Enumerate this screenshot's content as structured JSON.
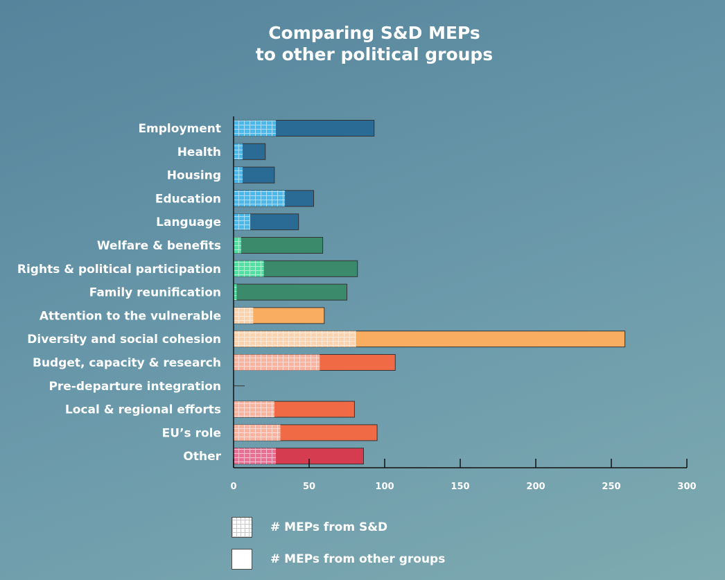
{
  "title_lines": [
    "Comparing S&D MEPs",
    "to other political groups"
  ],
  "legend": {
    "sd_label": "# MEPs from S&D",
    "other_label": "# MEPs from other groups"
  },
  "chart_data": {
    "type": "bar",
    "orientation": "horizontal",
    "stacked": true,
    "title": "Comparing S&D MEPs to other political groups",
    "categories": [
      "Employment",
      "Health",
      "Housing",
      "Education",
      "Language",
      "Welfare & benefits",
      "Rights & political participation",
      "Family reunification",
      "Attention to the vulnerable",
      "Diversity and social cohesion",
      "Budget, capacity & research",
      "Pre-departure integration",
      "Local & regional efforts",
      "EU’s role",
      "Other"
    ],
    "series": [
      {
        "name": "# MEPs from S&D",
        "values": [
          28,
          6,
          6,
          34,
          11,
          5,
          20,
          2,
          13,
          81,
          57,
          0,
          27,
          31,
          28
        ]
      },
      {
        "name": "# MEPs from other groups",
        "values": [
          65,
          15,
          21,
          19,
          32,
          54,
          62,
          73,
          47,
          178,
          50,
          0,
          53,
          64,
          58
        ]
      }
    ],
    "category_colors": [
      "#2a6b95",
      "#2a6b95",
      "#2a6b95",
      "#2a6b95",
      "#2a6b95",
      "#3a8a6b",
      "#3a8a6b",
      "#3a8a6b",
      "#f9ad60",
      "#f9ad60",
      "#f06b45",
      "#f06b45",
      "#f06b45",
      "#f06b45",
      "#d63c50"
    ],
    "sd_colors": [
      "#4ab8ea",
      "#4ab8ea",
      "#4ab8ea",
      "#4ab8ea",
      "#4ab8ea",
      "#4fe0a2",
      "#4fe0a2",
      "#4fe0a2",
      "#fbd3ae",
      "#fbd3ae",
      "#fab39f",
      "#fab39f",
      "#fab39f",
      "#fab39f",
      "#ea6f95"
    ],
    "xlim": [
      0,
      300
    ],
    "xticks": [
      0,
      50,
      100,
      150,
      200,
      250,
      300
    ],
    "grid": false,
    "legend_position": "bottom-left"
  }
}
